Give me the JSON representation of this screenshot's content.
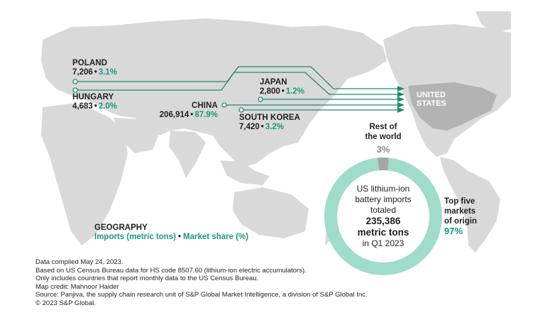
{
  "map": {
    "destination": {
      "name_line1": "UNITED",
      "name_line2": "STATES"
    },
    "origins": [
      {
        "id": "poland",
        "name": "POLAND",
        "imports": "7,206",
        "share": "3.1%"
      },
      {
        "id": "hungary",
        "name": "HUNGARY",
        "imports": "4,683",
        "share": "2.0%"
      },
      {
        "id": "china",
        "name": "CHINA",
        "imports": "206,914",
        "share": "87.9%"
      },
      {
        "id": "japan",
        "name": "JAPAN",
        "imports": "2,800",
        "share": "1.2%"
      },
      {
        "id": "south_korea",
        "name": "SOUTH KOREA",
        "imports": "7,420",
        "share": "3.2%"
      }
    ],
    "separator": "•"
  },
  "legend": {
    "title": "GEOGRAPHY",
    "imports_label": "Imports (metric tons)",
    "share_label": "Market share (%)"
  },
  "donut": {
    "center_line1": "US lithium-ion",
    "center_line2": "battery imports",
    "center_line3": "totaled",
    "center_value": "235,386",
    "center_unit": "metric tons",
    "center_period": "in Q1 2023",
    "rest_label_line1": "Rest of",
    "rest_label_line2": "the world",
    "rest_pct": "3%",
    "top_label_line1": "Top five",
    "top_label_line2": "markets",
    "top_label_line3": "of origin",
    "top_pct": "97%",
    "rest_fraction": 0.03,
    "colors": {
      "top": "#9fdcc9",
      "rest": "#a6a6a6"
    }
  },
  "colors": {
    "flow_line": "#1e8a6e",
    "share_text": "#1a9a7c",
    "land": "#d9d9d9",
    "us_land": "#b3b3b3"
  },
  "notes": [
    "Data compiled May 24, 2023.",
    "Based on US Census Bureau data for HS code 8507.60 (lithium-ion electric accumulators).",
    "Only includes countries that report monthly data to the US Census Bureau.",
    "Map credit: Mahnoor Haider",
    "Source: Panjiva, the supply chain research unit of S&P Global Market Intelligence, a division of S&P Global Inc.",
    "© 2023 S&P Global."
  ]
}
